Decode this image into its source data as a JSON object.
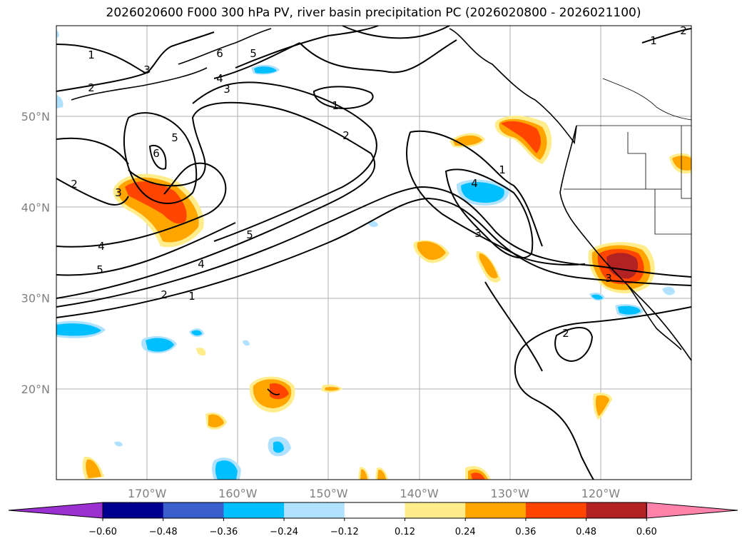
{
  "title": "2026020600 F000 300 hPa PV, river basin precipitation PC (2026020800 - 2026021100)",
  "map": {
    "lat_labels": [
      {
        "text": "50°N",
        "value": 50
      },
      {
        "text": "40°N",
        "value": 40
      },
      {
        "text": "30°N",
        "value": 30
      },
      {
        "text": "20°N",
        "value": 20
      }
    ],
    "lon_labels": [
      {
        "text": "170°W",
        "value": -170
      },
      {
        "text": "160°W",
        "value": -160
      },
      {
        "text": "150°W",
        "value": -150
      },
      {
        "text": "140°W",
        "value": -140
      },
      {
        "text": "130°W",
        "value": -130
      },
      {
        "text": "120°W",
        "value": -120
      }
    ],
    "extent": {
      "lon_min": -180,
      "lon_max": -110,
      "lat_min": 10,
      "lat_max": 60
    },
    "contour_labels": [
      "1",
      "3",
      "2",
      "6",
      "5",
      "4",
      "3",
      "1",
      "2",
      "5",
      "6",
      "2",
      "3",
      "5",
      "4",
      "5",
      "4",
      "2",
      "1",
      "1",
      "4",
      "3",
      "2",
      "3",
      "1",
      "2"
    ]
  },
  "colorbar": {
    "ticks": [
      "−0.60",
      "−0.48",
      "−0.36",
      "−0.24",
      "−0.12",
      "0.12",
      "0.24",
      "0.36",
      "0.48",
      "0.60"
    ],
    "colors": [
      "#9b30d0",
      "#000090",
      "#3a5fcd",
      "#00bfff",
      "#b0e2ff",
      "#ffffff",
      "#ffec8b",
      "#ffa500",
      "#ff4500",
      "#b22222",
      "#ff82ab"
    ]
  }
}
